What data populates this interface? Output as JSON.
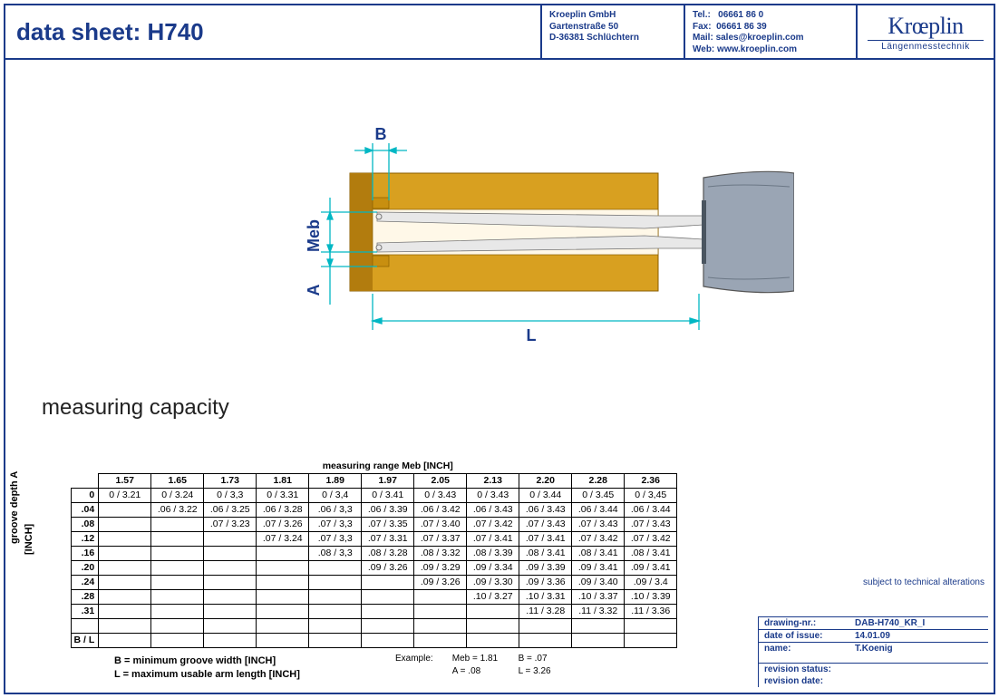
{
  "header": {
    "title": "data sheet:  H740",
    "company": {
      "name": "Kroeplin GmbH",
      "street": "Gartenstraße 50",
      "city": "D-36381 Schlüchtern"
    },
    "contact": {
      "tel_label": "Tel.:",
      "tel": "06661 86 0",
      "fax_label": "Fax:",
      "fax": "06661 86 39",
      "mail_label": "Mail:",
      "mail": "sales@kroeplin.com",
      "web_label": "Web:",
      "web": "www.kroeplin.com"
    },
    "logo_main": "Krœplin",
    "logo_sub": "Längenmesstechnik"
  },
  "diagram": {
    "labels": {
      "B": "B",
      "Meb": "Meb",
      "A": "A",
      "L": "L"
    },
    "colors": {
      "dim_line": "#00b7c4",
      "dim_text": "#1a3a8a",
      "part_fill": "#d8a020",
      "part_fill_dark": "#b27c0e",
      "probe_fill": "#e8e8e8",
      "probe_stroke": "#666",
      "handle_fill": "#9aa5b4",
      "handle_stroke": "#555"
    }
  },
  "section_title": "measuring capacity",
  "table": {
    "range_header": "measuring range   Meb    [INCH]",
    "row_axis_label": "groove depth   A",
    "row_axis_unit": "[INCH]",
    "col_headers": [
      "1.57",
      "1.65",
      "1.73",
      "1.81",
      "1.89",
      "1.97",
      "2.05",
      "2.13",
      "2.20",
      "2.28",
      "2.36"
    ],
    "row_headers": [
      "0",
      ".04",
      ".08",
      ".12",
      ".16",
      ".20",
      ".24",
      ".28",
      ".31"
    ],
    "footer_row_label": "B / L",
    "rows": [
      [
        "0 / 3.21",
        "0 / 3.24",
        "0 / 3,3",
        "0 / 3.31",
        "0 / 3,4",
        "0 / 3.41",
        "0 / 3.43",
        "0 / 3.43",
        "0 / 3.44",
        "0 / 3.45",
        "0 / 3,45"
      ],
      [
        "",
        ".06 / 3.22",
        ".06 / 3.25",
        ".06 / 3.28",
        ".06 / 3,3",
        ".06 / 3.39",
        ".06 / 3.42",
        ".06 / 3.43",
        ".06 / 3.43",
        ".06 / 3.44",
        ".06 / 3.44"
      ],
      [
        "",
        "",
        ".07 / 3.23",
        ".07 / 3.26",
        ".07 / 3,3",
        ".07 / 3.35",
        ".07 / 3.40",
        ".07 / 3.42",
        ".07 / 3.43",
        ".07 / 3.43",
        ".07 / 3.43"
      ],
      [
        "",
        "",
        "",
        ".07 / 3.24",
        ".07 / 3,3",
        ".07 / 3.31",
        ".07 / 3.37",
        ".07 / 3.41",
        ".07 / 3.41",
        ".07 / 3.42",
        ".07 / 3.42"
      ],
      [
        "",
        "",
        "",
        "",
        ".08 / 3,3",
        ".08 / 3.28",
        ".08 / 3.32",
        ".08 / 3.39",
        ".08 / 3.41",
        ".08 / 3.41",
        ".08 / 3.41"
      ],
      [
        "",
        "",
        "",
        "",
        "",
        ".09 / 3.26",
        ".09 / 3.29",
        ".09 / 3.34",
        ".09 / 3.39",
        ".09 / 3.41",
        ".09 / 3.41"
      ],
      [
        "",
        "",
        "",
        "",
        "",
        "",
        ".09 / 3.26",
        ".09 / 3.30",
        ".09 / 3.36",
        ".09 / 3.40",
        ".09 / 3.4"
      ],
      [
        "",
        "",
        "",
        "",
        "",
        "",
        "",
        ".10 / 3.27",
        ".10 / 3.31",
        ".10 / 3.37",
        ".10 / 3.39"
      ],
      [
        "",
        "",
        "",
        "",
        "",
        "",
        "",
        "",
        ".11 / 3.28",
        ".11 / 3.32",
        ".11 / 3.36"
      ]
    ]
  },
  "legend": {
    "B": "B = minimum groove width [INCH]",
    "L": "L = maximum usable arm length [INCH]"
  },
  "example": {
    "label": "Example:",
    "meb": "Meb = 1.81",
    "b": "B = .07",
    "a": "A = .08",
    "l": "L = 3.26"
  },
  "footer_note": "subject to technical alterations",
  "meta": {
    "drawing_nr_label": "drawing-nr.:",
    "drawing_nr": "DAB-H740_KR_I",
    "issue_label": "date of issue:",
    "issue": "14.01.09",
    "name_label": "name:",
    "name": "T.Koenig",
    "rev_status_label": "revision status:",
    "rev_status": "",
    "rev_date_label": "revision date:",
    "rev_date": ""
  }
}
